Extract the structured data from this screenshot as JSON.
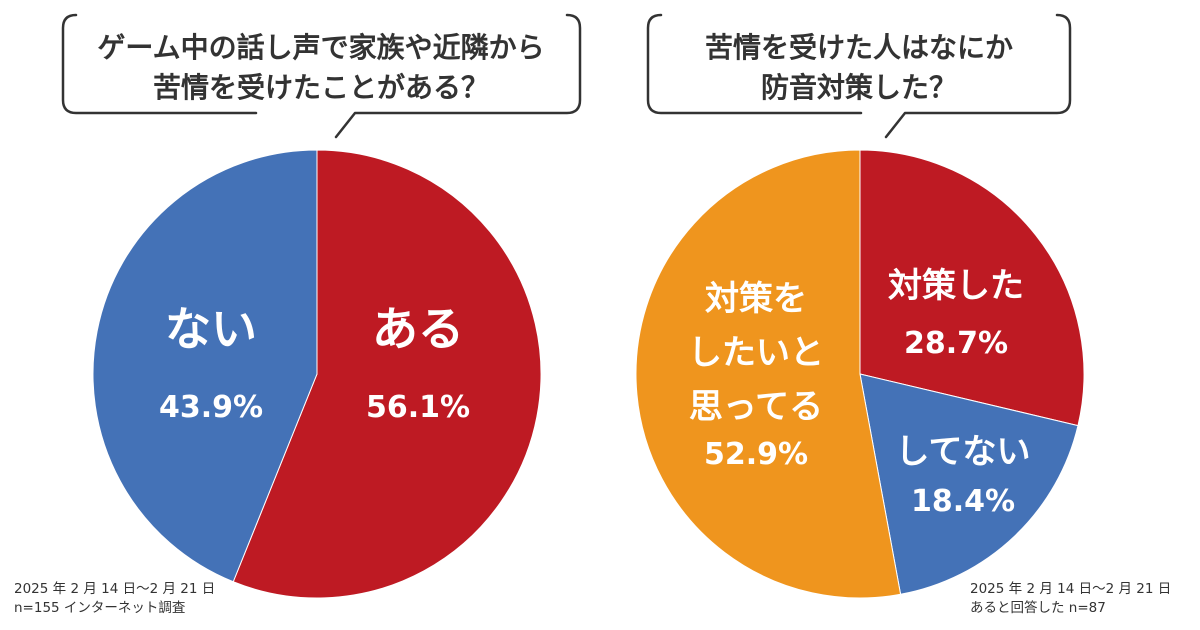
{
  "chart_data": [
    {
      "type": "pie",
      "title": [
        "ゲーム中の話し声で家族や近隣から",
        "苦情を受けたことがある？"
      ],
      "slices": [
        {
          "label": [
            "ある"
          ],
          "value": 56.1,
          "value_label": "56.1%",
          "color": "#be1a23"
        },
        {
          "label": [
            "ない"
          ],
          "value": 43.9,
          "value_label": "43.9%",
          "color": "#4472b7"
        }
      ],
      "notes": [
        "2025 年 2 月 14 日〜2 月 21 日",
        "n=155 インターネット調査"
      ]
    },
    {
      "type": "pie",
      "title": [
        "苦情を受けた人はなにか",
        "防音対策した？"
      ],
      "slices": [
        {
          "label": [
            "対策した"
          ],
          "value": 28.7,
          "value_label": "28.7%",
          "color": "#be1a23"
        },
        {
          "label": [
            "してない"
          ],
          "value": 18.4,
          "value_label": "18.4%",
          "color": "#4472b7"
        },
        {
          "label": [
            "対策を",
            "したいと",
            "思ってる"
          ],
          "value": 52.9,
          "value_label": "52.9%",
          "color": "#ef951e"
        }
      ],
      "notes": [
        "2025 年 2 月 14 日〜2 月 21 日",
        "あると回答した n=87"
      ]
    }
  ]
}
